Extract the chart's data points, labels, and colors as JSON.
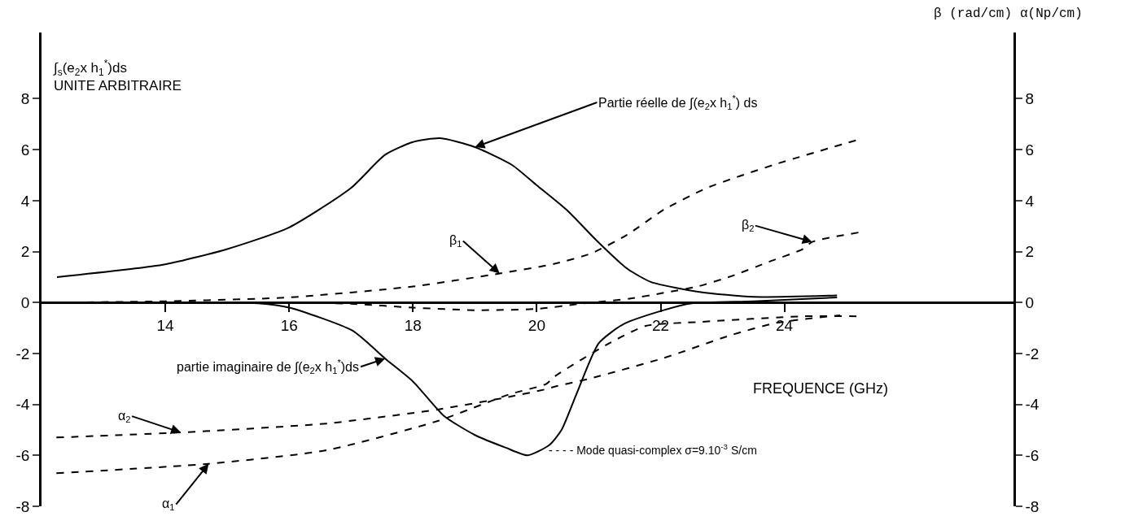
{
  "chart_data": {
    "type": "line",
    "xlabel": "FREQUENCE (GHz)",
    "ylabel": "∫$_{s}$(e$_{2}$x h$_{1}$$^{*}$)ds\nUNITE ARBITRAIRE",
    "y2label": "α(Np/cm)",
    "xlim": [
      12,
      27.7
    ],
    "xticks": [
      14,
      16,
      18,
      20,
      22,
      24
    ],
    "ylim": [
      -8,
      10.6
    ],
    "yticks": [
      -8,
      -6,
      -4,
      -2,
      0,
      2,
      4,
      6,
      8
    ],
    "y2lim": [
      -8,
      10.6
    ],
    "y2ticks": [
      -8,
      -6,
      -4,
      -2,
      0,
      2,
      4,
      6,
      8
    ],
    "marker": "none",
    "series": [
      {
        "color": "#000000",
        "line_style": "solid",
        "x": [
          12.25,
          14,
          15,
          16,
          17,
          17.55,
          18,
          18.44,
          19,
          19.6,
          20,
          20.5,
          20.96,
          21.46,
          21.85,
          22.65,
          23.5,
          24.85
        ],
        "values": [
          1.0,
          1.5,
          2.1,
          2.95,
          4.5,
          5.8,
          6.3,
          6.45,
          6.1,
          5.4,
          4.6,
          3.6,
          2.45,
          1.33,
          0.8,
          0.41,
          0.22,
          0.28
        ]
      },
      {
        "color": "#000000",
        "line_style": "solid",
        "x": [
          12.25,
          15,
          15.5,
          16,
          17.02,
          17.55,
          18,
          18.5,
          19,
          19.5,
          19.85,
          20.2,
          20.4,
          20.64,
          21.0,
          21.4,
          22.05,
          22.5,
          23.5,
          24.85
        ],
        "values": [
          0,
          0,
          -0.03,
          -0.2,
          -1.1,
          -2.2,
          -3.1,
          -4.45,
          -5.2,
          -5.7,
          -6.0,
          -5.6,
          -5.0,
          -3.6,
          -1.6,
          -0.85,
          -0.3,
          -0.03,
          0.05,
          0.2
        ]
      },
      {
        "color": "#000000",
        "line_style": "dashed",
        "axis": "y2",
        "x": [
          12.25,
          14,
          16,
          18,
          19.4,
          20.29,
          20.88,
          21.46,
          22.05,
          22.75,
          23.82,
          25.2
        ],
        "values": [
          0,
          0.05,
          0.2,
          0.63,
          1.14,
          1.52,
          1.93,
          2.66,
          3.64,
          4.5,
          5.4,
          6.4
        ]
      },
      {
        "color": "#000000",
        "line_style": "dashed",
        "axis": "y2",
        "x": [
          12.25,
          16,
          17,
          18,
          19,
          20,
          20.7,
          21.5,
          22.05,
          22.6,
          23.15,
          23.75,
          24.3,
          24.45,
          25.2
        ],
        "values": [
          0,
          0,
          -0.05,
          -0.2,
          -0.3,
          -0.25,
          -0.05,
          0.15,
          0.38,
          0.63,
          1.04,
          1.6,
          2.1,
          2.38,
          2.75
        ]
      },
      {
        "color": "#000000",
        "line_style": "dashed",
        "axis": "y2",
        "x": [
          12.24,
          14.7,
          16.6,
          18.4,
          19.56,
          20.15,
          20.29,
          21.17,
          21.76,
          22.65,
          24.3,
          25.2
        ],
        "values": [
          -6.7,
          -6.33,
          -5.8,
          -4.65,
          -3.6,
          -3.2,
          -2.9,
          -1.6,
          -0.92,
          -0.76,
          -0.54,
          -0.54
        ]
      },
      {
        "color": "#000000",
        "line_style": "dashed",
        "axis": "y2",
        "x": [
          12.24,
          14.25,
          16.6,
          18.4,
          19.56,
          20.15,
          20.29,
          20.88,
          22.05,
          23.15,
          23.87,
          24.9
        ],
        "values": [
          -5.3,
          -5.1,
          -4.75,
          -4.2,
          -3.7,
          -3.4,
          -3.3,
          -2.97,
          -2.18,
          -1.27,
          -0.8,
          -0.5
        ]
      }
    ],
    "annotations": [
      {
        "text": "Partie réelle de ∫(e$_{2}$x h$_{1}$$^{*}$) ds",
        "x": 19.0,
        "y": 6.1
      },
      {
        "text": "partie imaginaire de ∫(e$_{2}$x h$_{1}$$^{*}$)ds",
        "x": 17.55,
        "y": -2.2
      },
      {
        "text": "β$_{1}$",
        "x": 19.4,
        "y": 1.14
      },
      {
        "text": "β$_{2}$",
        "x": 24.45,
        "y": 2.38
      },
      {
        "text": "α$_{2}$",
        "x": 14.25,
        "y": -5.1
      },
      {
        "text": "α$_{1}$",
        "x": 14.7,
        "y": -6.33
      },
      "β (rad/cm)",
      "- - - - Mode quasi-complex σ=9.10$^{-3}$ S/cm"
    ]
  }
}
